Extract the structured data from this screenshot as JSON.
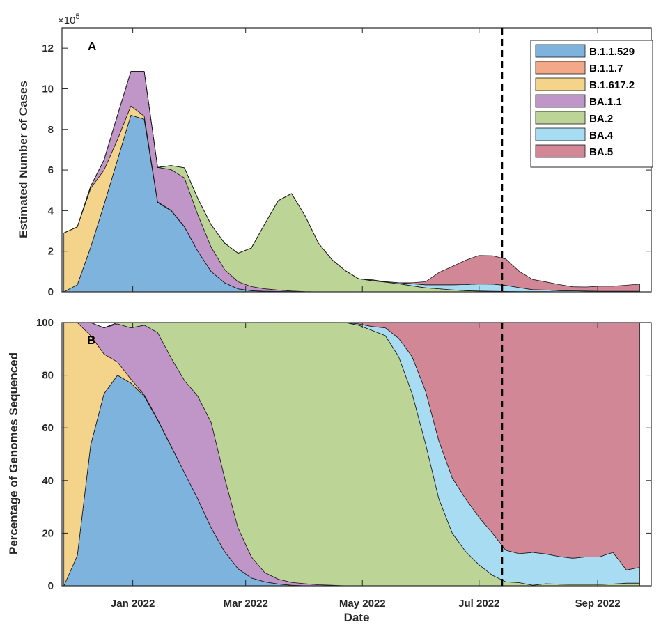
{
  "chart_data": [
    {
      "type": "area",
      "panel_label": "A",
      "ylabel": "Estimated Number of Cases",
      "xlabel": "",
      "y_multiplier": "×10",
      "y_exponent": "5",
      "ylim": [
        0,
        13
      ],
      "yticks": [
        0,
        2,
        4,
        6,
        8,
        10,
        12
      ],
      "x_range": [
        "2021-11-25",
        "2022-09-29"
      ],
      "x": [
        "2021-11-26",
        "2021-12-03",
        "2021-12-10",
        "2021-12-17",
        "2021-12-24",
        "2021-12-31",
        "2022-01-07",
        "2022-01-14",
        "2022-01-21",
        "2022-01-28",
        "2022-02-04",
        "2022-02-11",
        "2022-02-18",
        "2022-02-25",
        "2022-03-04",
        "2022-03-11",
        "2022-03-18",
        "2022-03-25",
        "2022-04-01",
        "2022-04-08",
        "2022-04-15",
        "2022-04-22",
        "2022-04-29",
        "2022-05-06",
        "2022-05-13",
        "2022-05-20",
        "2022-05-27",
        "2022-06-03",
        "2022-06-10",
        "2022-06-17",
        "2022-06-24",
        "2022-07-01",
        "2022-07-08",
        "2022-07-15",
        "2022-07-22",
        "2022-07-29",
        "2022-08-05",
        "2022-08-12",
        "2022-08-19",
        "2022-08-26",
        "2022-09-02",
        "2022-09-09",
        "2022-09-16",
        "2022-09-23"
      ],
      "stacked": true,
      "series": [
        {
          "name": "B.1.1.529",
          "color": "#7eb3dd",
          "values": [
            0,
            0.35,
            2.2,
            4.3,
            6.5,
            8.7,
            8.5,
            4.4,
            4.0,
            3.2,
            2.0,
            1.0,
            0.45,
            0.15,
            0.06,
            0.03,
            0.02,
            0.01,
            0,
            0,
            0,
            0,
            0,
            0,
            0,
            0,
            0,
            0,
            0,
            0,
            0,
            0,
            0,
            0,
            0,
            0,
            0,
            0,
            0,
            0,
            0,
            0,
            0,
            0
          ]
        },
        {
          "name": "B.1.1.7",
          "color": "#f2a889",
          "values": [
            0,
            0,
            0,
            0,
            0,
            0,
            0,
            0,
            0,
            0,
            0,
            0,
            0,
            0,
            0,
            0,
            0,
            0,
            0,
            0,
            0,
            0,
            0,
            0,
            0,
            0,
            0,
            0,
            0,
            0,
            0,
            0,
            0,
            0,
            0,
            0,
            0,
            0,
            0,
            0,
            0,
            0,
            0,
            0
          ]
        },
        {
          "name": "B.1.617.2",
          "color": "#f4d48b",
          "values": [
            2.9,
            2.85,
            2.9,
            1.7,
            1.0,
            0.45,
            0.15,
            0.03,
            0.02,
            0.01,
            0,
            0,
            0,
            0,
            0,
            0,
            0,
            0,
            0,
            0,
            0,
            0,
            0,
            0,
            0,
            0,
            0,
            0,
            0,
            0,
            0,
            0,
            0,
            0,
            0,
            0,
            0,
            0,
            0,
            0,
            0,
            0,
            0,
            0
          ]
        },
        {
          "name": "BA.1.1",
          "color": "#c096c8",
          "values": [
            0,
            0,
            0.1,
            0.5,
            1.2,
            1.7,
            2.2,
            1.7,
            2.0,
            2.4,
            1.8,
            1.2,
            0.65,
            0.35,
            0.2,
            0.12,
            0.07,
            0.03,
            0.01,
            0,
            0,
            0,
            0,
            0,
            0,
            0,
            0,
            0,
            0,
            0,
            0,
            0,
            0,
            0,
            0,
            0,
            0,
            0,
            0,
            0,
            0,
            0,
            0,
            0
          ]
        },
        {
          "name": "BA.2",
          "color": "#bcd597",
          "values": [
            0,
            0,
            0,
            0,
            0,
            0,
            0,
            0,
            0.2,
            0.5,
            0.8,
            1.1,
            1.3,
            1.4,
            1.9,
            3.2,
            4.4,
            4.8,
            3.75,
            2.4,
            1.6,
            1.05,
            0.65,
            0.55,
            0.48,
            0.4,
            0.3,
            0.2,
            0.15,
            0.1,
            0.06,
            0.04,
            0.03,
            0.02,
            0.01,
            0.01,
            0.01,
            0,
            0,
            0,
            0,
            0,
            0,
            0
          ]
        },
        {
          "name": "BA.4",
          "color": "#a7dcf2",
          "values": [
            0,
            0,
            0,
            0,
            0,
            0,
            0,
            0,
            0,
            0,
            0,
            0,
            0,
            0,
            0,
            0,
            0,
            0,
            0,
            0,
            0,
            0,
            0,
            0.01,
            0.02,
            0.05,
            0.1,
            0.15,
            0.2,
            0.25,
            0.3,
            0.35,
            0.35,
            0.3,
            0.2,
            0.1,
            0.08,
            0.06,
            0.05,
            0.04,
            0.03,
            0.03,
            0.03,
            0.03
          ]
        },
        {
          "name": "BA.5",
          "color": "#d28796",
          "values": [
            0,
            0,
            0,
            0,
            0,
            0,
            0,
            0,
            0,
            0,
            0,
            0,
            0,
            0,
            0,
            0,
            0,
            0,
            0,
            0,
            0,
            0,
            0,
            0.04,
            0.0,
            0.0,
            0.05,
            0.15,
            0.6,
            0.9,
            1.2,
            1.4,
            1.4,
            1.3,
            0.8,
            0.5,
            0.4,
            0.3,
            0.2,
            0.2,
            0.25,
            0.25,
            0.3,
            0.35
          ]
        }
      ]
    },
    {
      "type": "area",
      "panel_label": "B",
      "ylabel": "Percentage of Genomes Sequenced",
      "xlabel": "Date",
      "ylim": [
        0,
        100
      ],
      "yticks": [
        0,
        20,
        40,
        60,
        80,
        100
      ],
      "x_range": [
        "2021-11-25",
        "2022-09-29"
      ],
      "xtick_labels": [
        "Jan 2022",
        "Mar 2022",
        "May 2022",
        "Jul 2022",
        "Sep 2022"
      ],
      "xtick_dates": [
        "2022-01-01",
        "2022-03-01",
        "2022-05-01",
        "2022-07-01",
        "2022-09-01"
      ],
      "x": [
        "2021-11-26",
        "2021-12-03",
        "2021-12-10",
        "2021-12-17",
        "2021-12-24",
        "2021-12-31",
        "2022-01-07",
        "2022-01-14",
        "2022-01-21",
        "2022-01-28",
        "2022-02-04",
        "2022-02-11",
        "2022-02-18",
        "2022-02-25",
        "2022-03-04",
        "2022-03-11",
        "2022-03-18",
        "2022-03-25",
        "2022-04-01",
        "2022-04-08",
        "2022-04-15",
        "2022-04-22",
        "2022-04-29",
        "2022-05-06",
        "2022-05-13",
        "2022-05-20",
        "2022-05-27",
        "2022-06-03",
        "2022-06-10",
        "2022-06-17",
        "2022-06-24",
        "2022-07-01",
        "2022-07-08",
        "2022-07-15",
        "2022-07-22",
        "2022-07-29",
        "2022-08-05",
        "2022-08-12",
        "2022-08-19",
        "2022-08-26",
        "2022-09-02",
        "2022-09-09",
        "2022-09-16",
        "2022-09-23"
      ],
      "stacked": true,
      "series": [
        {
          "name": "B.1.1.529",
          "color": "#7eb3dd",
          "values": [
            0,
            11.5,
            53.5,
            73,
            80,
            77,
            72,
            63,
            53,
            43,
            33,
            22,
            13,
            6.5,
            3,
            1.5,
            0.7,
            0.2,
            0,
            0,
            0,
            0,
            0,
            0,
            0,
            0,
            0,
            0,
            0,
            0,
            0,
            0,
            0,
            0,
            0,
            0,
            0,
            0,
            0,
            0,
            0,
            0,
            0,
            0
          ]
        },
        {
          "name": "B.1.1.7",
          "color": "#f2a889",
          "values": [
            0,
            0,
            0,
            0,
            0,
            0,
            0,
            0,
            0,
            0,
            0,
            0,
            0,
            0,
            0,
            0,
            0,
            0,
            0,
            0,
            0,
            0,
            0,
            0,
            0,
            0,
            0,
            0,
            0,
            0,
            0,
            0,
            0,
            0,
            0,
            0,
            0,
            0,
            0,
            0,
            0,
            0,
            0,
            0
          ]
        },
        {
          "name": "B.1.617.2",
          "color": "#f4d48b",
          "values": [
            100,
            88.5,
            41.5,
            15,
            5,
            1.5,
            0.5,
            0.2,
            0.1,
            0,
            0,
            0,
            0,
            0,
            0,
            0,
            0,
            0,
            0,
            0,
            0,
            0,
            0,
            0,
            0,
            0,
            0,
            0,
            0,
            0,
            0,
            0,
            0,
            0,
            0,
            0,
            0,
            0,
            0,
            0,
            0,
            0,
            0,
            0
          ]
        },
        {
          "name": "BA.1.1",
          "color": "#c096c8",
          "values": [
            0,
            0,
            5,
            10,
            14.5,
            19.5,
            26.5,
            33,
            33.5,
            35,
            39,
            40,
            28,
            15.5,
            8,
            3.5,
            1.8,
            1.1,
            0.8,
            0.4,
            0.2,
            0,
            0,
            0,
            0,
            0,
            0,
            0,
            0,
            0,
            0,
            0,
            0,
            0,
            0,
            0,
            0,
            0,
            0,
            0,
            0,
            0,
            0,
            0
          ]
        },
        {
          "name": "BA.2",
          "color": "#bcd597",
          "values": [
            0,
            0,
            0,
            0,
            0.5,
            2,
            1,
            3.8,
            13.4,
            22,
            28,
            38,
            59,
            78,
            89,
            95,
            97.5,
            98.7,
            99.2,
            99.6,
            99.8,
            100,
            99,
            97,
            95,
            87,
            73,
            54,
            33,
            20,
            13,
            8,
            4,
            1.5,
            1.2,
            0.2,
            0.8,
            0.6,
            0.5,
            0.5,
            0.5,
            0.7,
            1,
            1
          ]
        },
        {
          "name": "BA.4",
          "color": "#a7dcf2",
          "values": [
            0,
            0,
            0,
            0,
            0,
            0,
            0,
            0,
            0,
            0,
            0,
            0,
            0,
            0,
            0,
            0,
            0,
            0,
            0,
            0,
            0,
            0,
            0.5,
            1.5,
            3,
            7,
            14,
            20,
            22,
            21,
            20,
            18,
            16,
            12,
            11,
            12.5,
            11.3,
            10.5,
            10,
            10.5,
            10.5,
            12,
            5,
            6
          ]
        },
        {
          "name": "BA.5",
          "color": "#d28796",
          "values": [
            0,
            0,
            0,
            0,
            0,
            0,
            0,
            0,
            0,
            0,
            0,
            0,
            0,
            0,
            0,
            0,
            0,
            0,
            0,
            0,
            0,
            0,
            0.5,
            1.5,
            2,
            6,
            13,
            26,
            45,
            59,
            67,
            74,
            80,
            86.5,
            87.8,
            87.3,
            87.9,
            88.9,
            89.5,
            89,
            89,
            87.3,
            94,
            93
          ]
        }
      ]
    }
  ],
  "legend": {
    "position": "top-right",
    "items": [
      {
        "label": "B.1.1.529",
        "color": "#7eb3dd"
      },
      {
        "label": "B.1.1.7",
        "color": "#f2a889"
      },
      {
        "label": "B.1.617.2",
        "color": "#f4d48b"
      },
      {
        "label": "BA.1.1",
        "color": "#c096c8"
      },
      {
        "label": "BA.2",
        "color": "#bcd597"
      },
      {
        "label": "BA.4",
        "color": "#a7dcf2"
      },
      {
        "label": "BA.5",
        "color": "#d28796"
      }
    ]
  },
  "reference_line": {
    "date": "2022-07-13",
    "style": "dashed"
  }
}
